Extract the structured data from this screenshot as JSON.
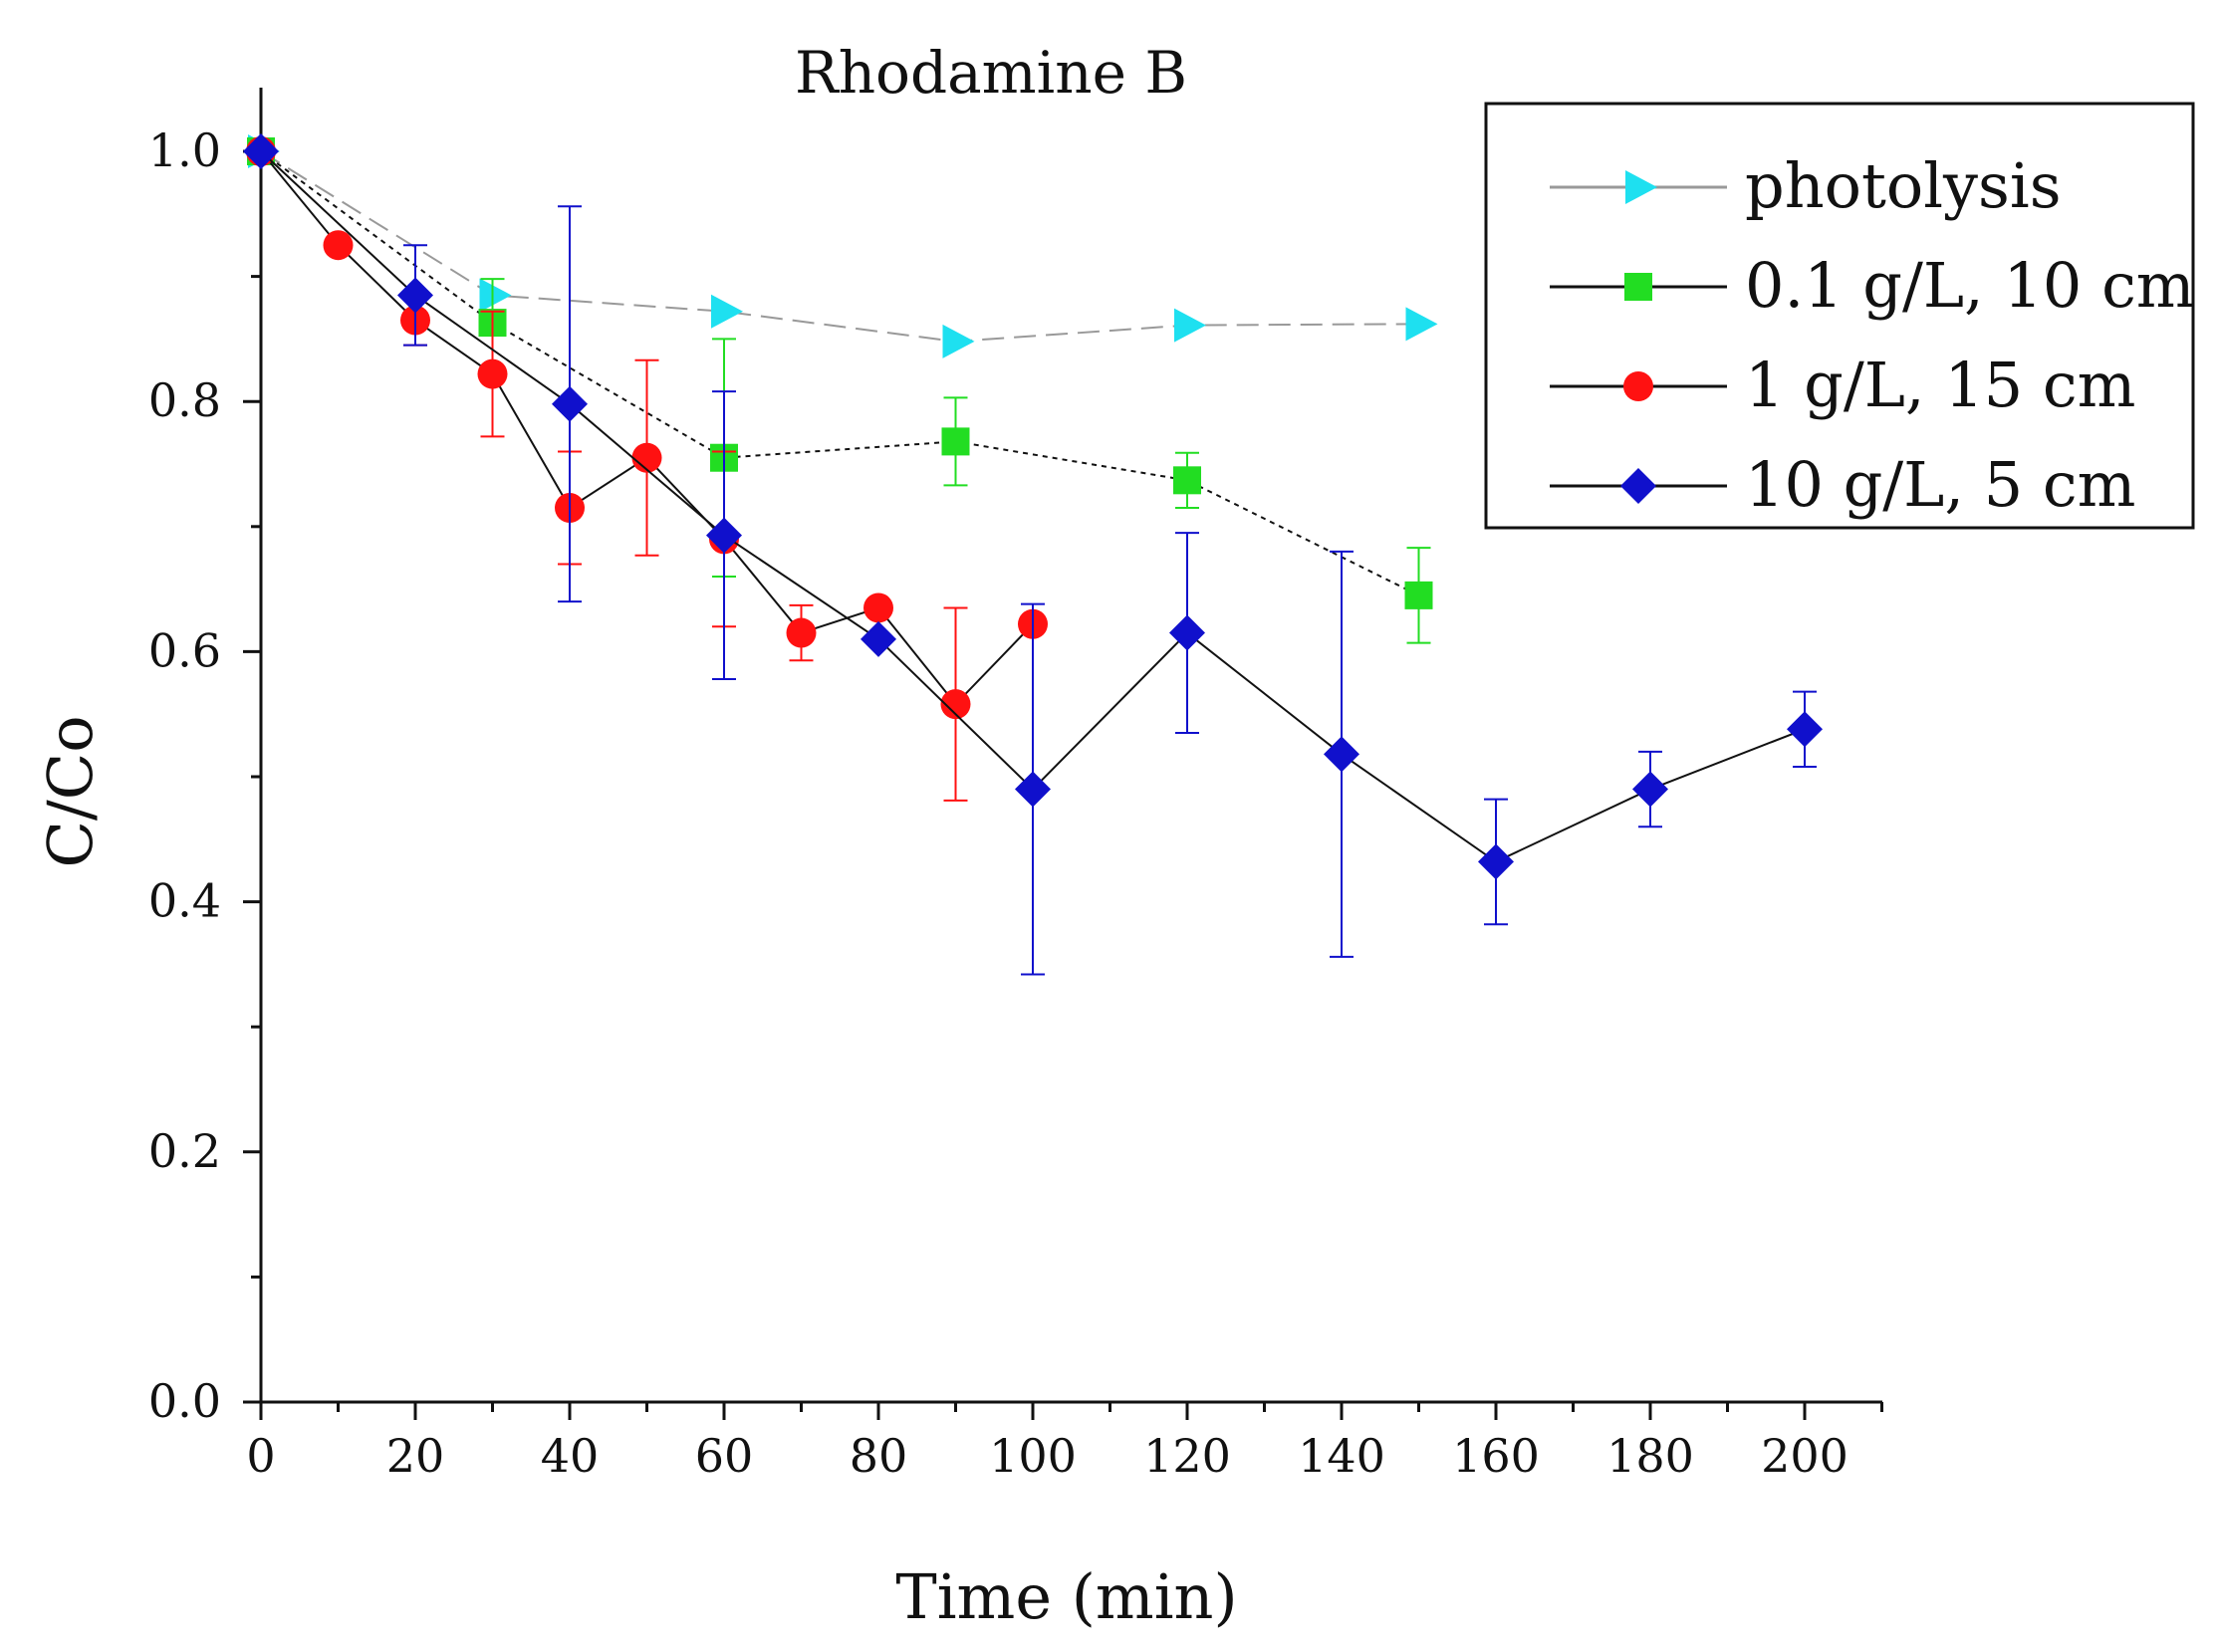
{
  "chart_data": {
    "type": "line",
    "title": "Rhodamine B",
    "xlabel": "Time (min)",
    "ylabel": "C/Co",
    "xlim": [
      0,
      210
    ],
    "ylim": [
      0,
      1.05
    ],
    "x_ticks": [
      0,
      20,
      40,
      60,
      80,
      100,
      120,
      140,
      160,
      180,
      200
    ],
    "y_ticks": [
      0.0,
      0.2,
      0.4,
      0.6,
      0.8,
      1.0
    ],
    "x_tick_labels": [
      "0",
      "20",
      "40",
      "60",
      "80",
      "100",
      "120",
      "140",
      "160",
      "180",
      "200"
    ],
    "y_tick_labels": [
      "0.0",
      "0.2",
      "0.4",
      "0.6",
      "0.8",
      "1.0"
    ],
    "legend_position": "top-right",
    "series": [
      {
        "name": "photolysis",
        "color": "#1ee0f0",
        "line_color": "#999999",
        "marker": "triangle-right",
        "dash": "dashed",
        "x": [
          0,
          30,
          60,
          90,
          120,
          150
        ],
        "y": [
          1.0,
          0.885,
          0.872,
          0.848,
          0.861,
          0.862
        ],
        "err": [
          0,
          0,
          0,
          0,
          0,
          0
        ]
      },
      {
        "name": "0.1 g/L, 10 cm",
        "color": "#22dd22",
        "line_color": "#111111",
        "marker": "square",
        "dash": "dotted",
        "x": [
          0,
          30,
          60,
          90,
          120,
          150
        ],
        "y": [
          1.0,
          0.863,
          0.755,
          0.768,
          0.737,
          0.645
        ],
        "err": [
          0,
          0.035,
          0.095,
          0.035,
          0.022,
          0.038
        ]
      },
      {
        "name": "1 g/L, 15 cm",
        "color": "#ff1111",
        "line_color": "#111111",
        "marker": "circle",
        "dash": "solid",
        "x": [
          0,
          10,
          20,
          30,
          40,
          50,
          60,
          70,
          80,
          90,
          100
        ],
        "y": [
          1.0,
          0.925,
          0.865,
          0.822,
          0.715,
          0.755,
          0.69,
          0.615,
          0.635,
          0.558,
          0.622
        ],
        "err": [
          0,
          0,
          0.02,
          0.05,
          0.045,
          0.078,
          0.07,
          0.022,
          0,
          0.077,
          0
        ]
      },
      {
        "name": "10 g/L, 5 cm",
        "color": "#1010cc",
        "line_color": "#111111",
        "marker": "diamond",
        "dash": "solid",
        "x": [
          0,
          20,
          40,
          60,
          80,
          100,
          120,
          140,
          160,
          180,
          200
        ],
        "y": [
          1.0,
          0.885,
          0.798,
          0.693,
          0.61,
          0.49,
          0.615,
          0.518,
          0.432,
          0.49,
          0.538
        ],
        "err": [
          0,
          0.04,
          0.158,
          0.115,
          0,
          0.148,
          0.08,
          0.162,
          0.05,
          0.03,
          0.03
        ]
      }
    ]
  }
}
